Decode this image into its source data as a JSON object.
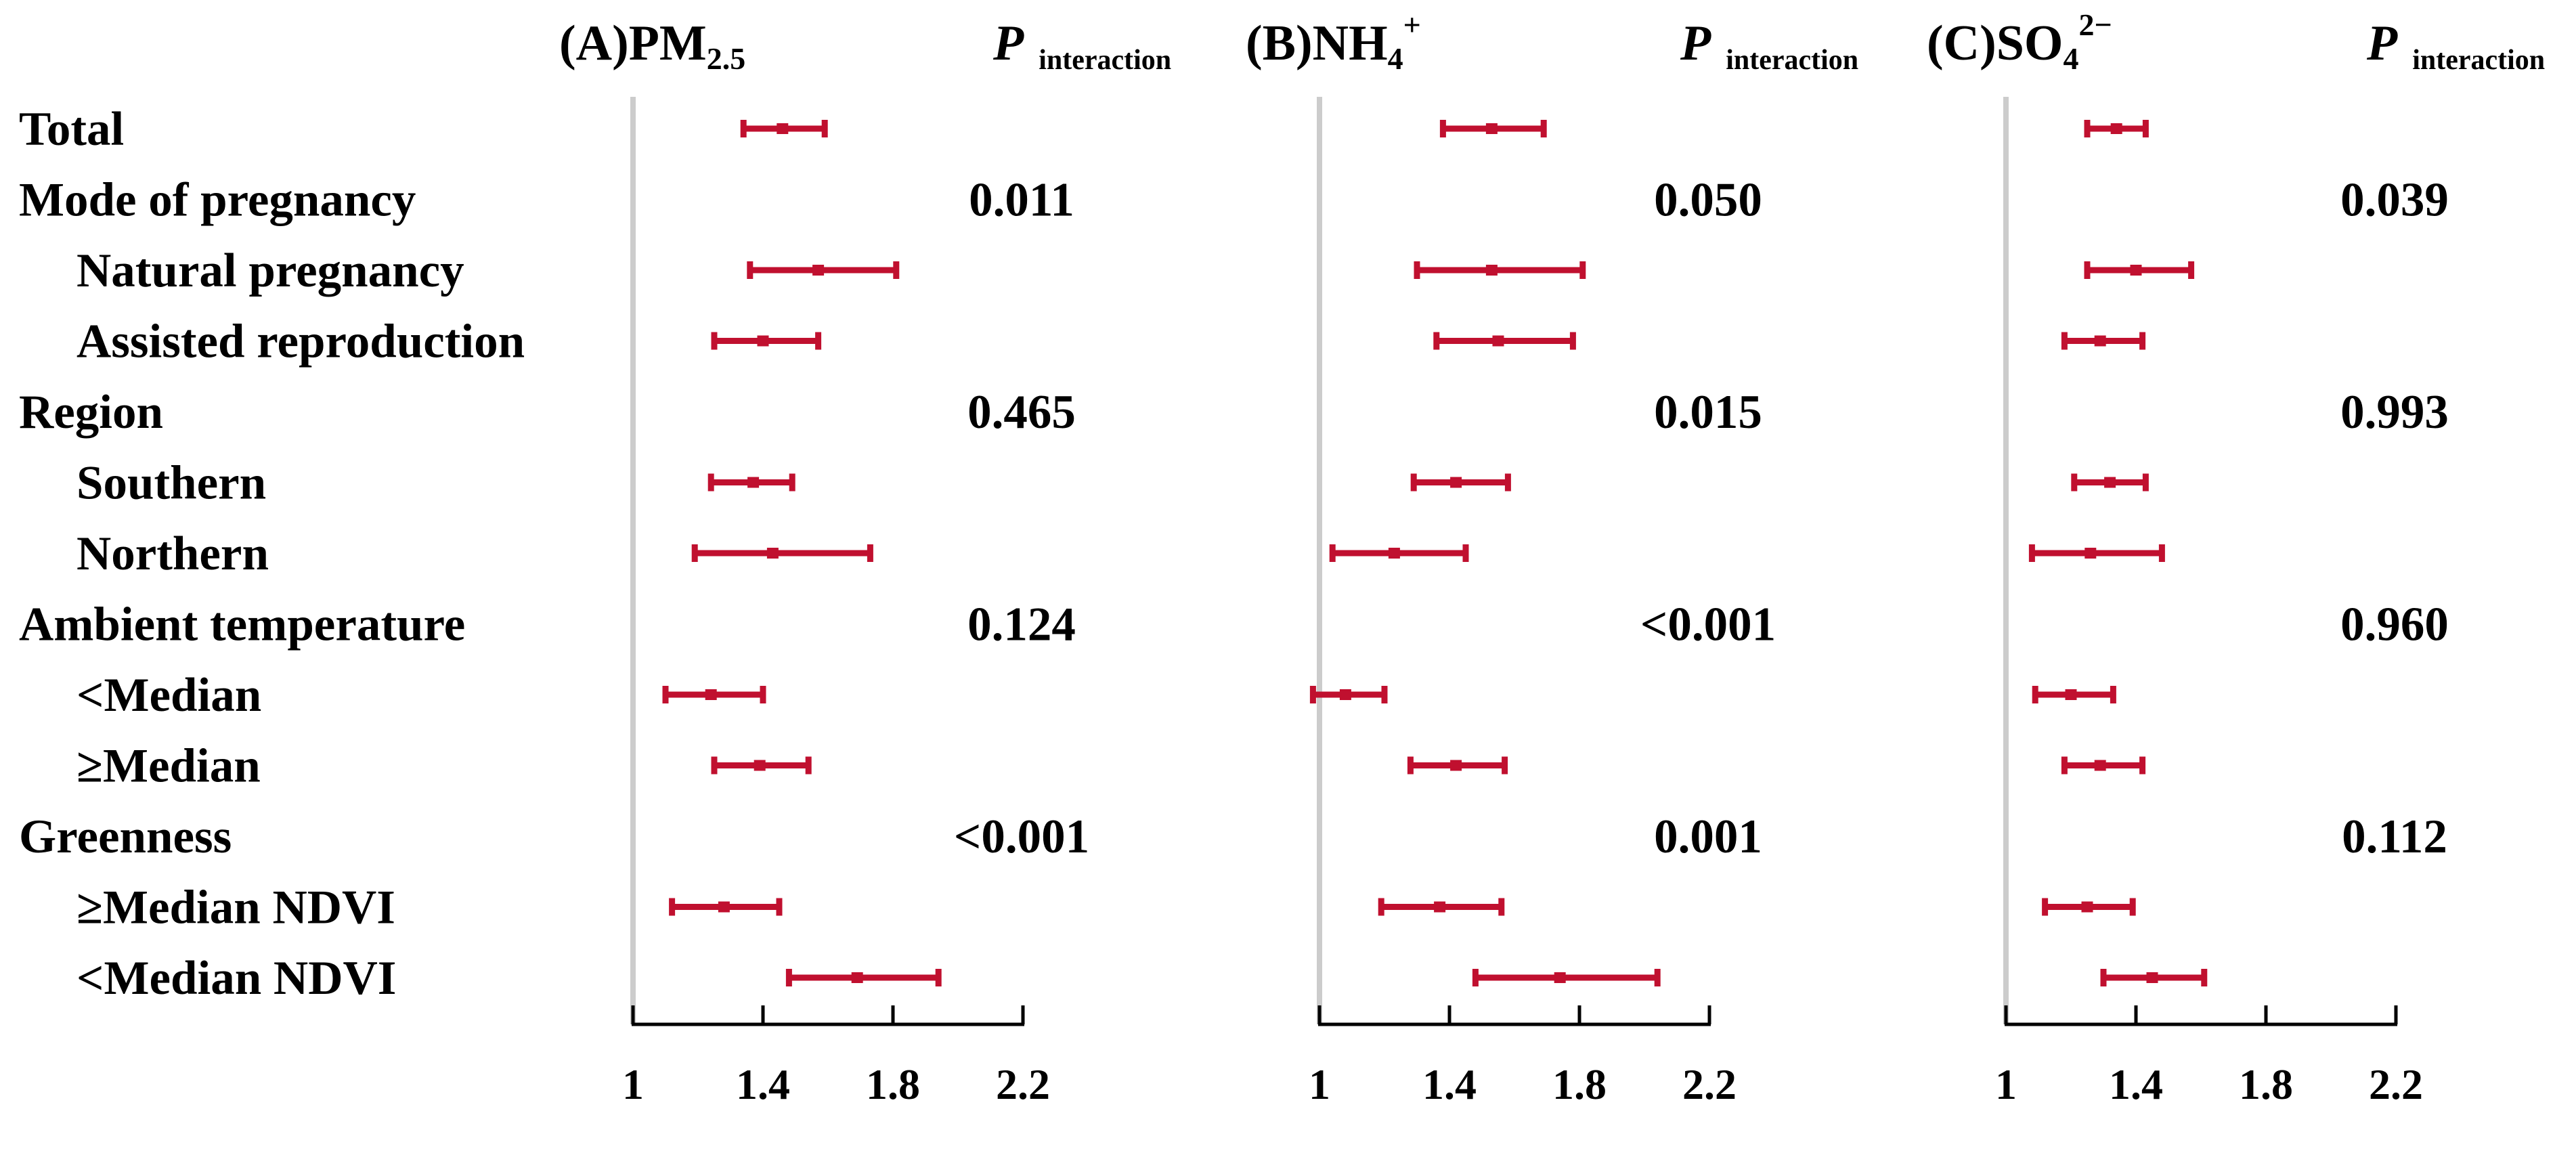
{
  "chart_data": {
    "type": "forest",
    "row_labels": [
      {
        "text": "Total",
        "indent": false
      },
      {
        "text": "Mode of pregnancy",
        "indent": false
      },
      {
        "text": "Natural pregnancy",
        "indent": true
      },
      {
        "text": "Assisted reproduction",
        "indent": true
      },
      {
        "text": "Region",
        "indent": false
      },
      {
        "text": "Southern",
        "indent": true
      },
      {
        "text": "Northern",
        "indent": true
      },
      {
        "text": "Ambient temperature",
        "indent": false
      },
      {
        "text": "<Median",
        "indent": true
      },
      {
        "text": "≥Median",
        "indent": true
      },
      {
        "text": "Greenness",
        "indent": false
      },
      {
        "text": "≥Median NDVI",
        "indent": true
      },
      {
        "text": "<Median NDVI",
        "indent": true
      }
    ],
    "p_label": "P",
    "p_label_sub": "interaction",
    "x_ticks": [
      "1",
      "1.4",
      "1.8",
      "2.2"
    ],
    "x_tick_values": [
      1.0,
      1.4,
      1.8,
      2.2
    ],
    "xlim": [
      1.0,
      2.2
    ],
    "reference_line": 1.0,
    "marker_color": "#c0102f",
    "reference_color": "#cccccc",
    "panels": [
      {
        "title_main": "(A)PM",
        "title_sub": "2.5",
        "title_sup": "",
        "p_values": [
          "",
          "0.011",
          "",
          "",
          "0.465",
          "",
          "",
          "0.124",
          "",
          "",
          "<0.001",
          "",
          ""
        ],
        "estimates": [
          {
            "est": 1.46,
            "lo": 1.34,
            "hi": 1.59
          },
          null,
          {
            "est": 1.57,
            "lo": 1.36,
            "hi": 1.81
          },
          {
            "est": 1.4,
            "lo": 1.25,
            "hi": 1.57
          },
          null,
          {
            "est": 1.37,
            "lo": 1.24,
            "hi": 1.49
          },
          {
            "est": 1.43,
            "lo": 1.19,
            "hi": 1.73
          },
          null,
          {
            "est": 1.24,
            "lo": 1.1,
            "hi": 1.4
          },
          {
            "est": 1.39,
            "lo": 1.25,
            "hi": 1.54
          },
          null,
          {
            "est": 1.28,
            "lo": 1.12,
            "hi": 1.45
          },
          {
            "est": 1.69,
            "lo": 1.48,
            "hi": 1.94
          }
        ]
      },
      {
        "title_main": "(B)NH",
        "title_sub": "4",
        "title_sup": "+",
        "p_values": [
          "",
          "0.050",
          "",
          "",
          "0.015",
          "",
          "",
          "<0.001",
          "",
          "",
          "0.001",
          "",
          ""
        ],
        "estimates": [
          {
            "est": 1.53,
            "lo": 1.38,
            "hi": 1.69
          },
          null,
          {
            "est": 1.53,
            "lo": 1.3,
            "hi": 1.81
          },
          {
            "est": 1.55,
            "lo": 1.36,
            "hi": 1.78
          },
          null,
          {
            "est": 1.42,
            "lo": 1.29,
            "hi": 1.58
          },
          {
            "est": 1.23,
            "lo": 1.04,
            "hi": 1.45
          },
          null,
          {
            "est": 1.08,
            "lo": 0.98,
            "hi": 1.2
          },
          {
            "est": 1.42,
            "lo": 1.28,
            "hi": 1.57
          },
          null,
          {
            "est": 1.37,
            "lo": 1.19,
            "hi": 1.56
          },
          {
            "est": 1.74,
            "lo": 1.48,
            "hi": 2.04
          }
        ]
      },
      {
        "title_main": "(C)SO",
        "title_sub": "4",
        "title_sup": "2−",
        "p_values": [
          "",
          "0.039",
          "",
          "",
          "0.993",
          "",
          "",
          "0.960",
          "",
          "",
          "0.112",
          "",
          ""
        ],
        "estimates": [
          {
            "est": 1.34,
            "lo": 1.25,
            "hi": 1.43
          },
          null,
          {
            "est": 1.4,
            "lo": 1.25,
            "hi": 1.57
          },
          {
            "est": 1.29,
            "lo": 1.18,
            "hi": 1.42
          },
          null,
          {
            "est": 1.32,
            "lo": 1.21,
            "hi": 1.43
          },
          {
            "est": 1.26,
            "lo": 1.08,
            "hi": 1.48
          },
          null,
          {
            "est": 1.2,
            "lo": 1.09,
            "hi": 1.33
          },
          {
            "est": 1.29,
            "lo": 1.18,
            "hi": 1.42
          },
          null,
          {
            "est": 1.25,
            "lo": 1.12,
            "hi": 1.39
          },
          {
            "est": 1.45,
            "lo": 1.3,
            "hi": 1.61
          }
        ]
      }
    ]
  }
}
